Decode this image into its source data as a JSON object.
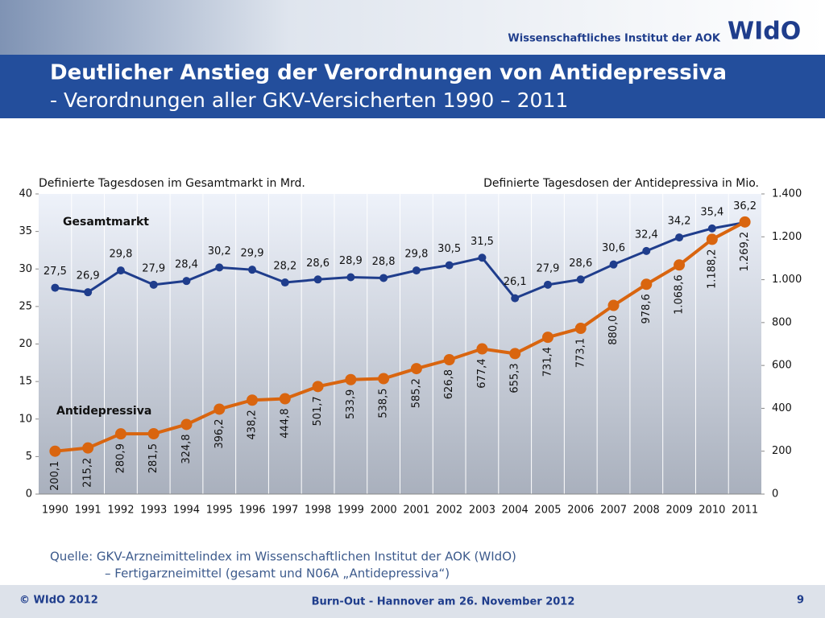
{
  "header": {
    "institute": "Wissenschaftliches Institut der AOK",
    "logo": "WIdO",
    "title": "Deutlicher Anstieg der Verordnungen von Antidepressiva",
    "subtitle": "- Verordnungen aller GKV-Versicherten 1990 – 2011"
  },
  "chart_data": {
    "type": "line",
    "y_label": "Definierte Tagesdosen im Gesamtmarkt in Mrd.",
    "y2_label": "Definierte Tagesdosen der Antidepressiva in Mio.",
    "categories": [
      "1990",
      "1991",
      "1992",
      "1993",
      "1994",
      "1995",
      "1996",
      "1997",
      "1998",
      "1999",
      "2000",
      "2001",
      "2002",
      "2003",
      "2004",
      "2005",
      "2006",
      "2007",
      "2008",
      "2009",
      "2010",
      "2011"
    ],
    "ylim": [
      0,
      40
    ],
    "yticks": [
      0,
      5,
      10,
      15,
      20,
      25,
      30,
      35,
      40
    ],
    "y2lim": [
      0,
      1400
    ],
    "y2ticks": [
      0,
      200,
      400,
      600,
      800,
      {
        "value": 1000,
        "label": "1.000"
      },
      {
        "value": 1200,
        "label": "1.200"
      },
      {
        "value": 1400,
        "label": "1.400"
      }
    ],
    "grid": true,
    "series": [
      {
        "name": "Gesamtmarkt",
        "color": "#1f3d8c",
        "values": [
          27.5,
          26.9,
          29.8,
          27.9,
          28.4,
          30.2,
          29.9,
          28.2,
          28.6,
          28.9,
          28.8,
          29.8,
          30.5,
          31.5,
          26.1,
          27.9,
          28.6,
          30.6,
          32.4,
          34.2,
          35.4,
          36.2
        ],
        "value_labels": [
          "27,5",
          "26,9",
          "29,8",
          "27,9",
          "28,4",
          "30,2",
          "29,9",
          "28,2",
          "28,6",
          "28,9",
          "28,8",
          "29,8",
          "30,5",
          "31,5",
          "26,1",
          "27,9",
          "28,6",
          "30,6",
          "32,4",
          "34,2",
          "35,4",
          "36,2"
        ]
      },
      {
        "name": "Antidepressiva",
        "color": "#d9650f",
        "axis": "y2",
        "values": [
          200.1,
          215.2,
          280.9,
          281.5,
          324.8,
          396.2,
          438.2,
          444.8,
          501.7,
          533.9,
          538.5,
          585.2,
          626.8,
          677.4,
          655.3,
          731.4,
          773.1,
          880.0,
          978.6,
          1068.6,
          1188.2,
          1269.2
        ],
        "value_labels": [
          "200,1",
          "215,2",
          "280,9",
          "281,5",
          "324,8",
          "396,2",
          "438,2",
          "444,8",
          "501,7",
          "533,9",
          "538,5",
          "585,2",
          "626,8",
          "677,4",
          "655,3",
          "731,4",
          "773,1",
          "880,0",
          "978,6",
          "1.068,6",
          "1.188,2",
          "1.269,2"
        ]
      }
    ]
  },
  "source": [
    "Quelle: GKV-Arzneimittelindex im Wissenschaftlichen Institut der AOK (WIdO)",
    "– Fertigarzneimittel (gesamt und N06A „Antidepressiva“)"
  ],
  "footer": {
    "left": "© WIdO 2012",
    "center": "Burn-Out - Hannover am 26. November 2012",
    "page": "9"
  }
}
